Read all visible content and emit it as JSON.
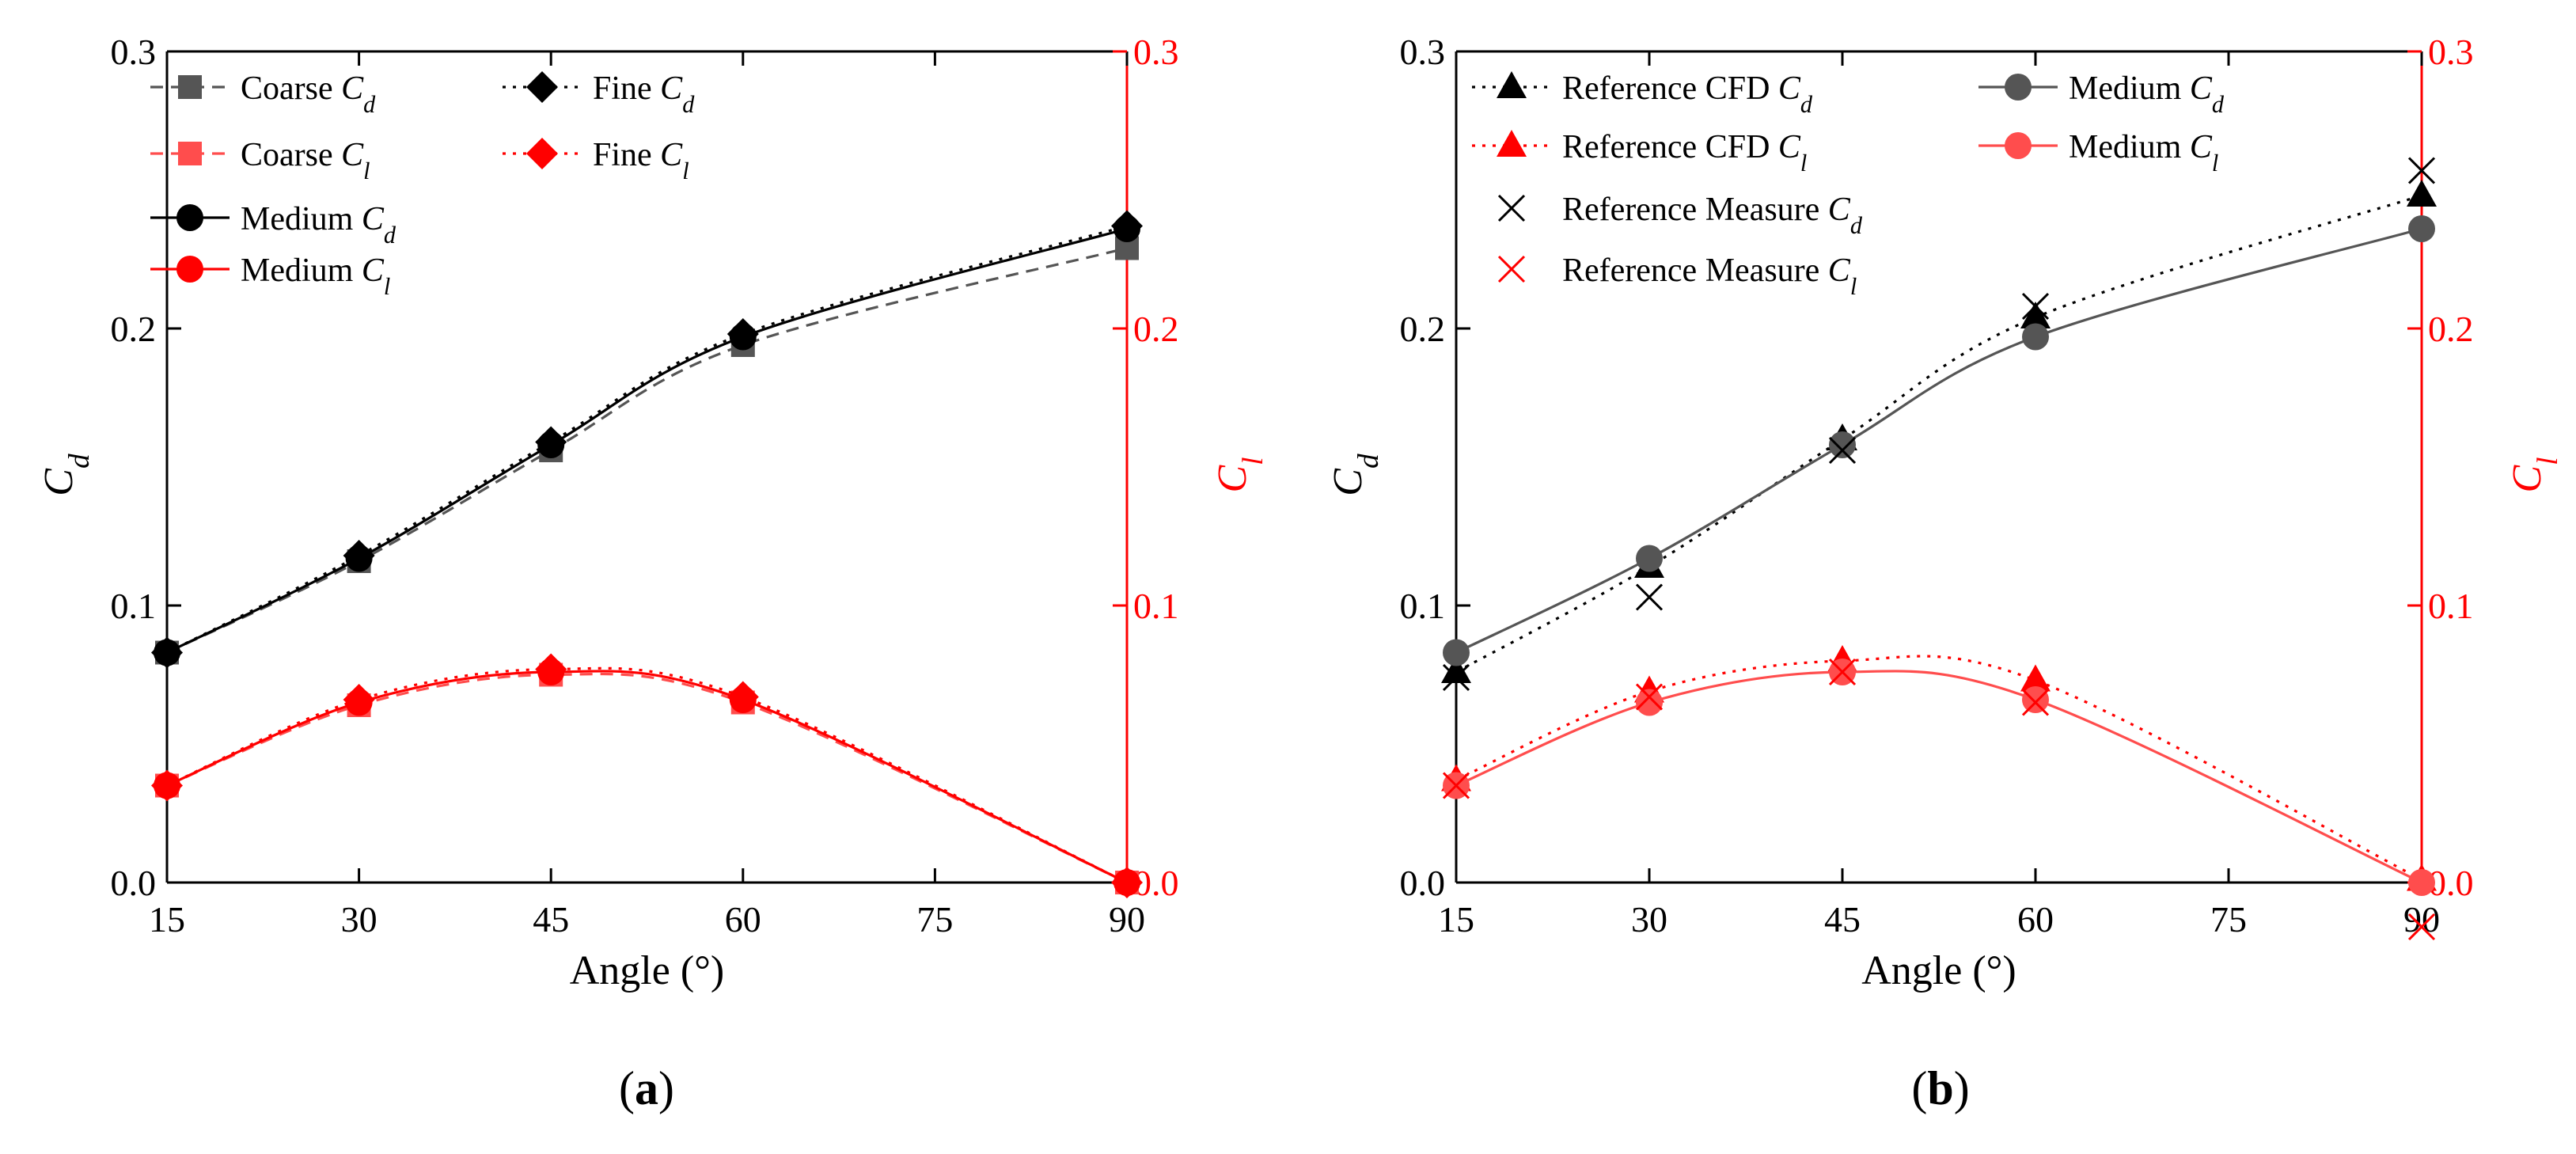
{
  "colors": {
    "black": "#000000",
    "gray": "#555555",
    "red": "#ff0000",
    "pink": "#ff4d4d"
  },
  "chart_data": [
    {
      "panel": "a",
      "caption_letter": "a",
      "type": "line",
      "xlabel": "Angle (°)",
      "ylabel_left": {
        "base": "C",
        "sub": "d"
      },
      "ylabel_right": {
        "base": "C",
        "sub": "l"
      },
      "xlim": [
        15,
        90
      ],
      "ylim": [
        0,
        0.3
      ],
      "xticks": [
        15,
        30,
        45,
        60,
        75,
        90
      ],
      "yticks": [
        0.0,
        0.1,
        0.2,
        0.3
      ],
      "x": [
        15,
        30,
        45,
        60,
        90
      ],
      "series": [
        {
          "name": "Coarse C_d",
          "label": "Coarse ",
          "sub": "d",
          "axis": "left",
          "color": "#555555",
          "marker": "square",
          "dash": "dashed",
          "values": [
            0.083,
            0.116,
            0.156,
            0.194,
            0.229
          ]
        },
        {
          "name": "Fine C_d",
          "label": "Fine ",
          "sub": "d",
          "axis": "left",
          "color": "#000000",
          "marker": "diamond",
          "dash": "dotted",
          "values": [
            0.083,
            0.118,
            0.159,
            0.198,
            0.237
          ]
        },
        {
          "name": "Coarse C_l",
          "label": "Coarse ",
          "sub": "l",
          "axis": "right",
          "color": "#ff4d4d",
          "marker": "square",
          "dash": "dashed",
          "values": [
            0.035,
            0.064,
            0.075,
            0.065,
            0.0
          ]
        },
        {
          "name": "Fine C_l",
          "label": "Fine ",
          "sub": "l",
          "axis": "right",
          "color": "#ff0000",
          "marker": "diamond",
          "dash": "dotted",
          "values": [
            0.035,
            0.066,
            0.077,
            0.067,
            0.0
          ]
        },
        {
          "name": "Medium C_d",
          "label": "Medium ",
          "sub": "d",
          "axis": "left",
          "color": "#000000",
          "marker": "circle",
          "dash": "solid",
          "values": [
            0.083,
            0.117,
            0.158,
            0.197,
            0.236
          ]
        },
        {
          "name": "Medium C_l",
          "label": "Medium ",
          "sub": "l",
          "axis": "right",
          "color": "#ff0000",
          "marker": "circle",
          "dash": "solid",
          "values": [
            0.035,
            0.065,
            0.076,
            0.066,
            0.0
          ]
        }
      ]
    },
    {
      "panel": "b",
      "caption_letter": "b",
      "type": "line",
      "xlabel": "Angle (°)",
      "ylabel_left": {
        "base": "C",
        "sub": "d"
      },
      "ylabel_right": {
        "base": "C",
        "sub": "l"
      },
      "xlim": [
        15,
        90
      ],
      "ylim": [
        0,
        0.3
      ],
      "xticks": [
        15,
        30,
        45,
        60,
        75,
        90
      ],
      "yticks": [
        0.0,
        0.1,
        0.2,
        0.3
      ],
      "x": [
        15,
        30,
        45,
        60,
        90
      ],
      "series": [
        {
          "name": "Reference CFD C_d",
          "label": "Reference CFD ",
          "sub": "d",
          "axis": "left",
          "color": "#000000",
          "marker": "triangle",
          "dash": "dotted",
          "values": [
            0.076,
            0.114,
            0.16,
            0.204,
            0.248
          ]
        },
        {
          "name": "Medium C_d",
          "label": "Medium ",
          "sub": "d",
          "axis": "left",
          "color": "#555555",
          "marker": "circle",
          "dash": "solid",
          "values": [
            0.083,
            0.117,
            0.158,
            0.197,
            0.236
          ]
        },
        {
          "name": "Reference CFD C_l",
          "label": "Reference CFD ",
          "sub": "l",
          "axis": "right",
          "color": "#ff0000",
          "marker": "triangle",
          "dash": "dotted",
          "values": [
            0.037,
            0.069,
            0.08,
            0.073,
            0.001
          ]
        },
        {
          "name": "Medium C_l",
          "label": "Medium ",
          "sub": "l",
          "axis": "right",
          "color": "#ff4d4d",
          "marker": "circle",
          "dash": "solid",
          "values": [
            0.035,
            0.065,
            0.076,
            0.066,
            0.0
          ]
        },
        {
          "name": "Reference Measure C_d",
          "label": "Reference Measure ",
          "sub": "d",
          "axis": "left",
          "color": "#000000",
          "marker": "cross",
          "dash": "none",
          "values": [
            0.074,
            0.103,
            0.156,
            0.208,
            0.257
          ]
        },
        {
          "name": "Reference Measure C_l",
          "label": "Reference Measure ",
          "sub": "l",
          "axis": "right",
          "color": "#ff0000",
          "marker": "cross",
          "dash": "none",
          "values": [
            0.035,
            0.067,
            0.076,
            0.065,
            -0.016
          ]
        }
      ]
    }
  ]
}
